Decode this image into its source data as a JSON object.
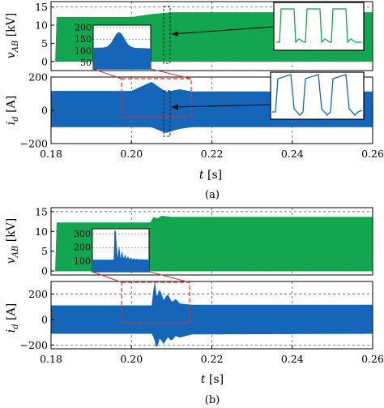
{
  "colors": {
    "green": "#12a650",
    "blue": "#1565b8",
    "red": "#e03030",
    "grid": "#444444"
  },
  "figures": [
    {
      "caption": "(a)",
      "xlabel": "t [s]",
      "xlim": [
        0.18,
        0.26
      ],
      "x_ticks": [
        0.18,
        0.2,
        0.22,
        0.24,
        0.26
      ],
      "x_tick_labels": [
        "0.18",
        "0.20",
        "0.22",
        "0.24",
        "0.26"
      ],
      "voltage": {
        "ylabel_main": "v",
        "ylabel_sub": "AB",
        "ylabel_unit": " [kV]",
        "ylim": [
          -2.5,
          16.5
        ],
        "y_ticks": [
          0,
          5,
          10,
          15
        ],
        "y_tick_labels": [
          "0",
          "5",
          "10",
          "15"
        ]
      },
      "current": {
        "ylabel_main": "i",
        "ylabel_sub": "d",
        "ylabel_unit": " [A]",
        "ylim": [
          -200,
          200
        ],
        "y_ticks": [
          -200,
          0,
          200
        ],
        "y_tick_labels": [
          "−200",
          "0",
          "200"
        ]
      },
      "inset": {
        "y_ticks": [
          50,
          100,
          150,
          200
        ],
        "y_tick_labels": [
          "50",
          "100",
          "150",
          "200"
        ],
        "ylim": [
          25,
          210
        ]
      }
    },
    {
      "caption": "(b)",
      "xlabel": "t [s]",
      "xlim": [
        0.18,
        0.26
      ],
      "x_ticks": [
        0.18,
        0.2,
        0.22,
        0.24,
        0.26
      ],
      "x_tick_labels": [
        "0.18",
        "0.20",
        "0.22",
        "0.24",
        "0.26"
      ],
      "voltage": {
        "ylabel_main": "v",
        "ylabel_sub": "AB",
        "ylabel_unit": " [kV]",
        "ylim": [
          -1,
          16
        ],
        "y_ticks": [
          0,
          5,
          10,
          15
        ],
        "y_tick_labels": [
          "0",
          "5",
          "10",
          "15"
        ]
      },
      "current": {
        "ylabel_main": "i",
        "ylabel_sub": "d",
        "ylabel_unit": " [A]",
        "ylim": [
          -230,
          300
        ],
        "y_ticks": [
          -200,
          0,
          200
        ],
        "y_tick_labels": [
          "−200",
          "0",
          "200"
        ]
      },
      "inset": {
        "y_ticks": [
          100,
          200,
          300
        ],
        "y_tick_labels": [
          "100",
          "200",
          "300"
        ],
        "ylim": [
          20,
          340
        ]
      }
    }
  ],
  "chart_data": [
    {
      "type": "area",
      "panel": "(a) upper",
      "title": "",
      "xlabel": "t [s]",
      "ylabel": "v_AB [kV]",
      "xlim": [
        0.18,
        0.26
      ],
      "ylim": [
        -2.5,
        16.5
      ],
      "grid": true,
      "series": [
        {
          "x": [
            0.18,
            0.1812,
            0.1812,
            0.2,
            0.205,
            0.21,
            0.26
          ],
          "upper": [
            0,
            0,
            12.2,
            12.2,
            13.0,
            13.5,
            13.5
          ],
          "lower": [
            0,
            0,
            0,
            0,
            0,
            0,
            0
          ]
        }
      ]
    },
    {
      "type": "area",
      "panel": "(a) lower",
      "title": "",
      "xlabel": "t [s]",
      "ylabel": "i_d [A]",
      "xlim": [
        0.18,
        0.26
      ],
      "ylim": [
        -200,
        200
      ],
      "grid": true,
      "series": [
        {
          "x": [
            0.18,
            0.2,
            0.205,
            0.2085,
            0.212,
            0.215,
            0.26
          ],
          "upper": [
            115,
            115,
            170,
            110,
            125,
            112,
            112
          ],
          "lower": [
            -100,
            -100,
            -100,
            -135,
            -110,
            -100,
            -100
          ]
        }
      ]
    },
    {
      "type": "area",
      "panel": "(b) upper",
      "title": "",
      "xlabel": "t [s]",
      "ylabel": "v_AB [kV]",
      "xlim": [
        0.18,
        0.26
      ],
      "ylim": [
        -1,
        16
      ],
      "grid": true,
      "series": [
        {
          "x": [
            0.18,
            0.1812,
            0.1812,
            0.2048,
            0.2055,
            0.2064,
            0.2075,
            0.21,
            0.26
          ],
          "upper": [
            0,
            0,
            12.2,
            12.2,
            13.6,
            13.2,
            13.9,
            13.6,
            13.6
          ],
          "lower": [
            0,
            0,
            0,
            0,
            0,
            0,
            0,
            0,
            0
          ]
        }
      ]
    },
    {
      "type": "area",
      "panel": "(b) lower",
      "title": "",
      "xlabel": "t [s]",
      "ylabel": "i_d [A]",
      "xlim": [
        0.18,
        0.26
      ],
      "ylim": [
        -230,
        300
      ],
      "grid": true,
      "series": [
        {
          "x": [
            0.18,
            0.204,
            0.2052,
            0.2057,
            0.2063,
            0.207,
            0.208,
            0.209,
            0.21,
            0.211,
            0.212,
            0.215,
            0.26
          ],
          "upper": [
            110,
            110,
            110,
            320,
            160,
            240,
            150,
            200,
            135,
            160,
            125,
            115,
            115
          ],
          "lower": [
            -110,
            -110,
            -110,
            -150,
            -230,
            -140,
            -190,
            -135,
            -165,
            -125,
            -140,
            -115,
            -110
          ]
        }
      ]
    }
  ]
}
